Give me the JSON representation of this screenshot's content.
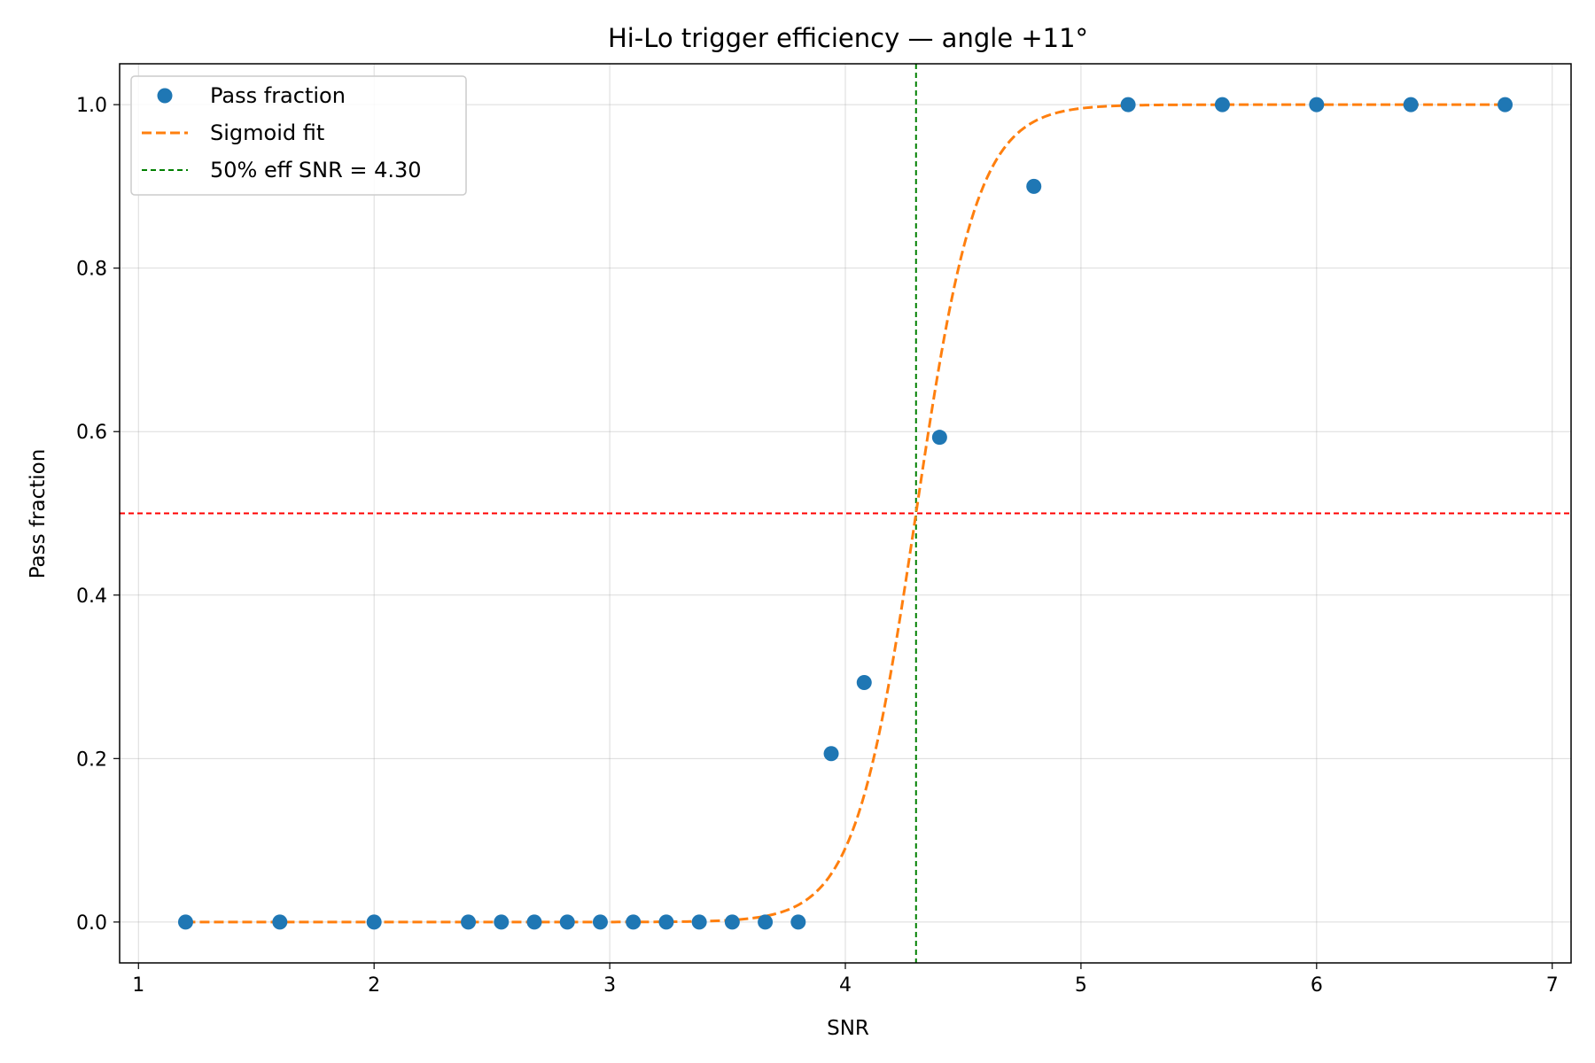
{
  "chart_data": {
    "type": "scatter",
    "title": "Hi-Lo trigger efficiency — angle +11°",
    "xlabel": "SNR",
    "ylabel": "Pass fraction",
    "xlim": [
      0.92,
      7.08
    ],
    "ylim": [
      -0.05,
      1.05
    ],
    "xticks": [
      1,
      2,
      3,
      4,
      5,
      6,
      7
    ],
    "yticks": [
      0.0,
      0.2,
      0.4,
      0.6,
      0.8,
      1.0
    ],
    "grid": true,
    "legend_placement": "upper-left",
    "series": [
      {
        "name": "Pass fraction",
        "kind": "points",
        "color": "#1f77b4",
        "x": [
          1.2,
          1.6,
          2.0,
          2.4,
          2.54,
          2.68,
          2.82,
          2.96,
          3.1,
          3.24,
          3.38,
          3.52,
          3.66,
          3.8,
          3.94,
          4.08,
          4.4,
          4.8,
          5.2,
          5.6,
          6.0,
          6.4,
          6.8
        ],
        "y": [
          0,
          0,
          0,
          0,
          0,
          0,
          0,
          0,
          0,
          0,
          0,
          0,
          0,
          0,
          0.206,
          0.293,
          0.593,
          0.9,
          1.0,
          1.0,
          1.0,
          1.0,
          1.0
        ]
      },
      {
        "name": "Sigmoid fit",
        "kind": "curve",
        "color": "#ff7f0e",
        "style": "dashed",
        "model": "logistic",
        "midpoint": 4.3,
        "steepness": 7.7,
        "x_range": [
          1.2,
          6.8
        ]
      }
    ],
    "reference_lines": [
      {
        "name": "50% eff SNR = 4.30",
        "orientation": "vertical",
        "value": 4.3,
        "color": "#008000",
        "style": "dashed",
        "in_legend": true
      },
      {
        "name": "",
        "orientation": "horizontal",
        "value": 0.5,
        "color": "#ff0000",
        "style": "dashed",
        "in_legend": false
      }
    ]
  }
}
